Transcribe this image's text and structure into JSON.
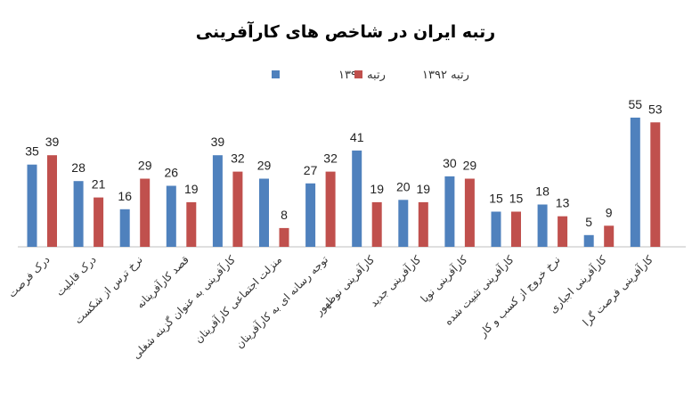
{
  "chart_data": {
    "type": "bar",
    "title": "رتبه ایران در شاخص های کارآفرینی",
    "xlabel": "",
    "ylabel": "",
    "ylim": [
      0,
      60
    ],
    "grid": false,
    "legend_position": "top",
    "categories": [
      "درک فرصت",
      "درک قابلیت",
      "نرخ ترس از شکست",
      "قصد کارآفرینانه",
      "کارآفرینی به عنوان گزینه شغلی",
      "منزلت اجتماعی کارآفرینان",
      "توجه رسانه ای به کارآفرینان",
      "کارآفرینی نوظهور",
      "کارآفرینی جدید",
      "کارآفرینی نوپا",
      "کارآفرینی تثبیت شده",
      "نرخ خروج از کسب و کار",
      "کارآفرینی اجباری",
      "کارآفرینی فرصت گرا"
    ],
    "series": [
      {
        "name": "رتبه ۱۳۹۱",
        "color": "#4F81BD",
        "values": [
          35,
          28,
          16,
          26,
          39,
          29,
          27,
          41,
          20,
          30,
          15,
          18,
          5,
          55
        ]
      },
      {
        "name": "رتبه ۱۳۹۲",
        "color": "#C0504D",
        "values": [
          39,
          21,
          29,
          19,
          32,
          8,
          32,
          19,
          19,
          29,
          15,
          13,
          9,
          53
        ]
      }
    ]
  }
}
